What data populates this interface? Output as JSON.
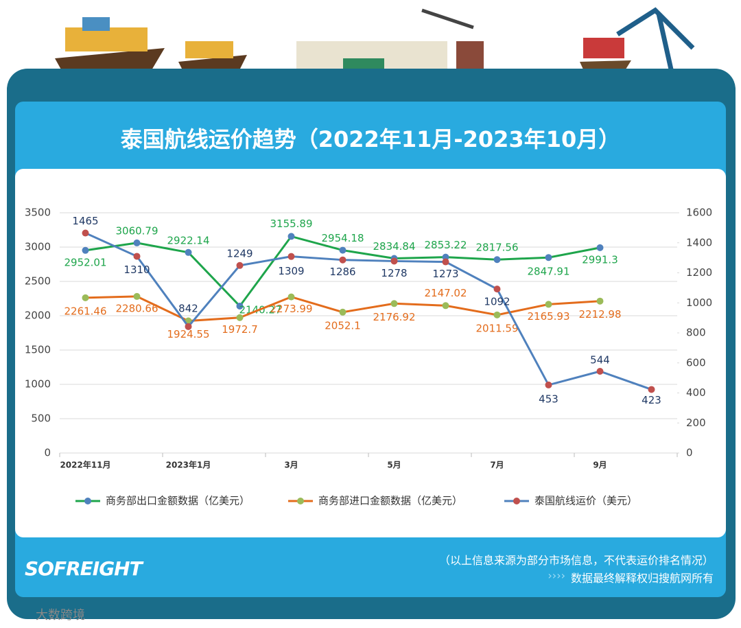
{
  "chart_data": {
    "type": "line",
    "title": "泰国航线运价趋势（2022年11月-2023年10月）",
    "categories": [
      "2022年11月",
      null,
      "2023年1月",
      null,
      "3月",
      null,
      "5月",
      null,
      "7月",
      null,
      "9月",
      null
    ],
    "series": [
      {
        "name": "商务部出口金额数据（亿美元）",
        "color": "#1ea54b",
        "marker": "#4f81bd",
        "label_color": "#1ea54b",
        "values": [
          2952.01,
          3060.79,
          2922.14,
          2140.27,
          3155.89,
          2954.18,
          2834.84,
          2853.22,
          2817.56,
          2847.91,
          2991.3,
          null
        ]
      },
      {
        "name": "商务部进口金额数据（亿美元）",
        "color": "#e36c1c",
        "marker": "#9bbb59",
        "label_color": "#e36c1c",
        "values": [
          2261.46,
          2280.66,
          1924.55,
          1972.7,
          2273.99,
          2052.1,
          2176.92,
          2147.02,
          2011.59,
          2165.93,
          2212.98,
          null
        ]
      },
      {
        "name": "泰国航线运价（美元）",
        "color": "#4f81bd",
        "marker": "#c0504d",
        "label_color": "#1f3864",
        "axis": "y2",
        "values": [
          1465,
          1310,
          842,
          1249,
          1309,
          1286,
          1278,
          1273,
          1092,
          453,
          544,
          423
        ]
      }
    ],
    "ylim": [
      0,
      3500
    ],
    "yticks": [
      0,
      500,
      1000,
      1500,
      2000,
      2500,
      3000,
      3500
    ],
    "y2lim": [
      0,
      1600
    ],
    "y2ticks": [
      0,
      200,
      400,
      600,
      800,
      1000,
      1200,
      1400,
      1600
    ],
    "grid": true,
    "legend": "bottom"
  },
  "footer": {
    "note": "（以上信息来源为部分市场信息，不代表运价排名情况）",
    "rights": "数据最终解释权归搜航网所有",
    "logo": "SOFREIGHT",
    "watermark": "大数跨境"
  }
}
